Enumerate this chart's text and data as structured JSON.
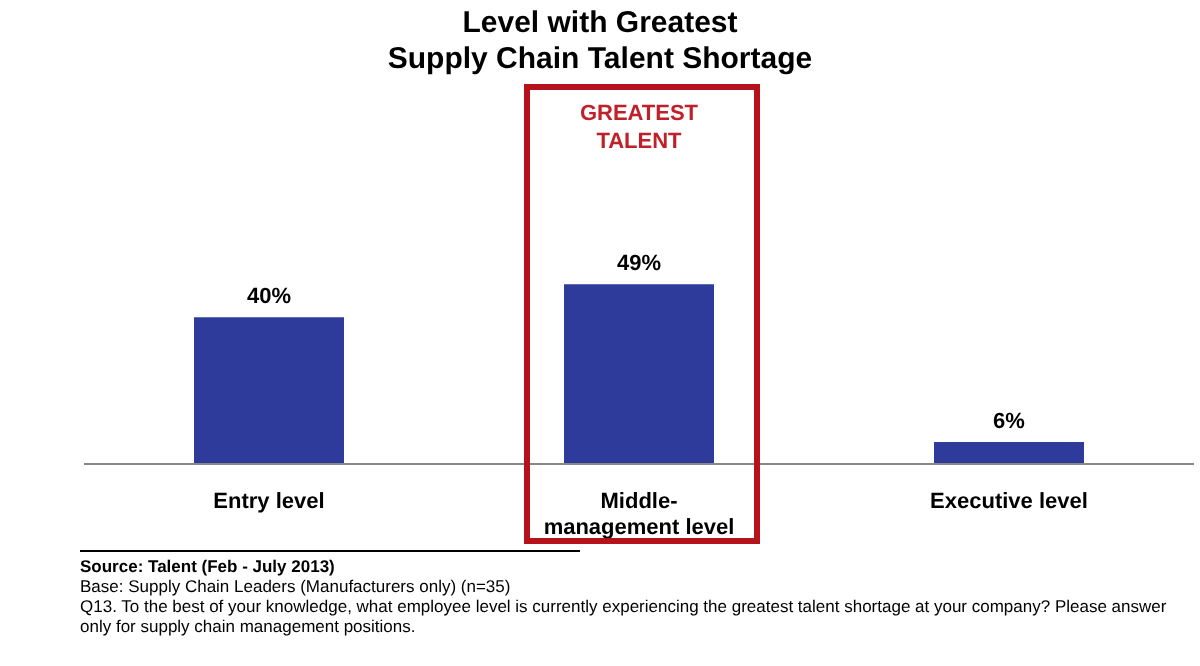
{
  "chart_data": {
    "type": "bar",
    "title": "Level with Greatest\nSupply Chain Talent Shortage",
    "categories": [
      "Entry level",
      "Middle-management level",
      "Executive level"
    ],
    "values": [
      40,
      49,
      6
    ],
    "value_labels": [
      "40%",
      "49%",
      "6%"
    ],
    "color": "#2e3b9a",
    "tick_labels": "x",
    "grid": false,
    "legend": false,
    "annotations": [
      "GREATEST TALENT",
      "Source: Talent (Feb - July 2013)",
      "Base:  Supply Chain Leaders (Manufacturers only) (n=35)",
      "Q13. To the best of your knowledge, what employee level is currently experiencing the greatest talent shortage at your company?  Please answer only for supply chain management positions."
    ]
  }
}
